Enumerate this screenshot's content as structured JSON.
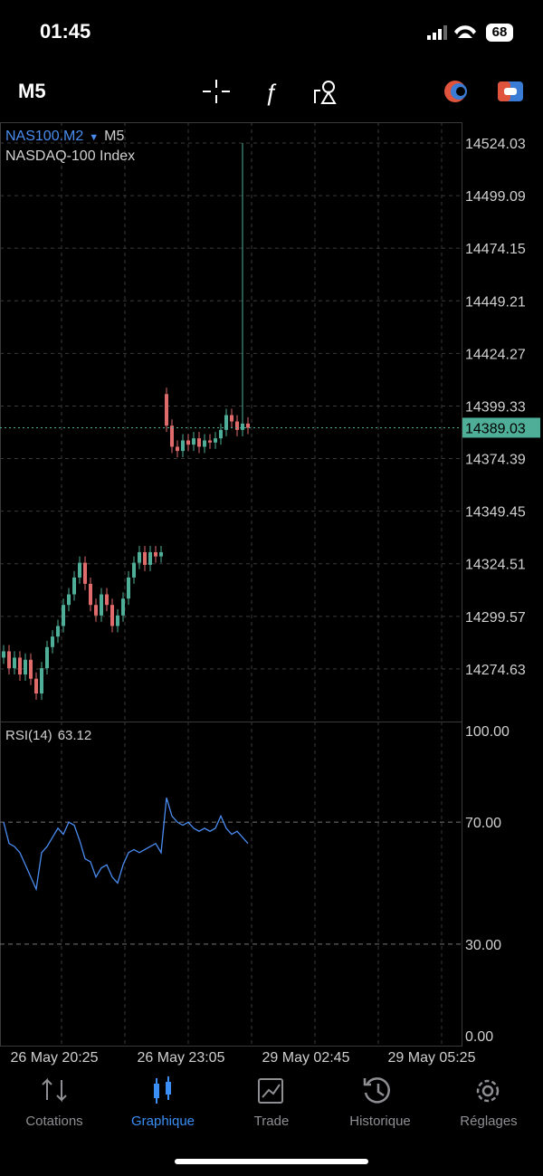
{
  "status_bar": {
    "time": "01:45",
    "battery": "68"
  },
  "toolbar": {
    "timeframe": "M5"
  },
  "chart_data": {
    "type": "candlestick",
    "symbol": "NAS100.M2",
    "timeframe": "M5",
    "description": "NASDAQ-100 Index",
    "candles": {
      "open": [
        14280,
        14283,
        14275,
        14280,
        14272,
        14279,
        14270,
        14263,
        14275,
        14285,
        14290,
        14295,
        14305,
        14310,
        14318,
        14325,
        14315,
        14305,
        14300,
        14310,
        14305,
        14295,
        14300,
        14308,
        14318,
        14325,
        14330,
        14324,
        14330,
        14328,
        14405,
        14390,
        14380,
        14378,
        14383,
        14381,
        14384,
        14380,
        14383,
        14382,
        14384,
        14388,
        14395,
        14392,
        14388,
        14391
      ],
      "high": [
        14286,
        14286,
        14283,
        14283,
        14282,
        14282,
        14273,
        14278,
        14288,
        14293,
        14298,
        14308,
        14313,
        14321,
        14328,
        14328,
        14318,
        14308,
        14313,
        14313,
        14308,
        14303,
        14311,
        14321,
        14328,
        14333,
        14333,
        14333,
        14333,
        14333,
        14408,
        14393,
        14383,
        14386,
        14386,
        14387,
        14387,
        14386,
        14386,
        14387,
        14391,
        14398,
        14398,
        14395,
        14524,
        14394
      ],
      "low": [
        14277,
        14272,
        14272,
        14269,
        14269,
        14267,
        14260,
        14260,
        14272,
        14282,
        14287,
        14292,
        14302,
        14307,
        14315,
        14312,
        14302,
        14297,
        14297,
        14302,
        14292,
        14292,
        14297,
        14305,
        14315,
        14322,
        14321,
        14321,
        14325,
        14325,
        14387,
        14377,
        14375,
        14375,
        14378,
        14378,
        14377,
        14377,
        14379,
        14379,
        14381,
        14385,
        14389,
        14385,
        14385,
        14386
      ],
      "close": [
        14283,
        14275,
        14280,
        14272,
        14279,
        14270,
        14263,
        14275,
        14285,
        14290,
        14295,
        14305,
        14310,
        14318,
        14325,
        14315,
        14305,
        14300,
        14310,
        14305,
        14295,
        14300,
        14308,
        14318,
        14325,
        14330,
        14324,
        14330,
        14328,
        14330,
        14390,
        14380,
        14378,
        14383,
        14381,
        14384,
        14380,
        14383,
        14382,
        14384,
        14388,
        14395,
        14392,
        14388,
        14391,
        14389
      ]
    },
    "colors": {
      "up": "#4fae98",
      "down": "#e06b6b"
    },
    "current_price": 14389.03,
    "ylim": [
      14249.7,
      14533.9
    ],
    "yticks": [
      14524.03,
      14499.09,
      14474.15,
      14449.21,
      14424.27,
      14399.33,
      14374.39,
      14349.45,
      14324.51,
      14299.57,
      14274.63
    ],
    "x_labels": [
      "26 May 20:25",
      "26 May 23:05",
      "29 May 02:45",
      "29 May 05:25"
    ],
    "grid": true
  },
  "indicator": {
    "type": "line",
    "name": "RSI(14)",
    "value": 63.12,
    "color": "#4a8cf0",
    "values": [
      70,
      63,
      62,
      60,
      56,
      52,
      48,
      60,
      62,
      65,
      68,
      66,
      70,
      69,
      64,
      58,
      57,
      52,
      55,
      56,
      52,
      50,
      56,
      60,
      61,
      60,
      61,
      62,
      63,
      60,
      78,
      72,
      70,
      69,
      70,
      68,
      67,
      68,
      67,
      68,
      72,
      68,
      66,
      67,
      65,
      63
    ],
    "ylim": [
      -3.3,
      103
    ],
    "yticks": [
      {
        "value": 100,
        "label": "100.00"
      },
      {
        "value": 70,
        "label": "70.00"
      },
      {
        "value": 30,
        "label": "30.00"
      },
      {
        "value": 0,
        "label": "0.00"
      }
    ]
  },
  "tabs": [
    "Cotations",
    "Graphique",
    "Trade",
    "Historique",
    "Réglages"
  ]
}
